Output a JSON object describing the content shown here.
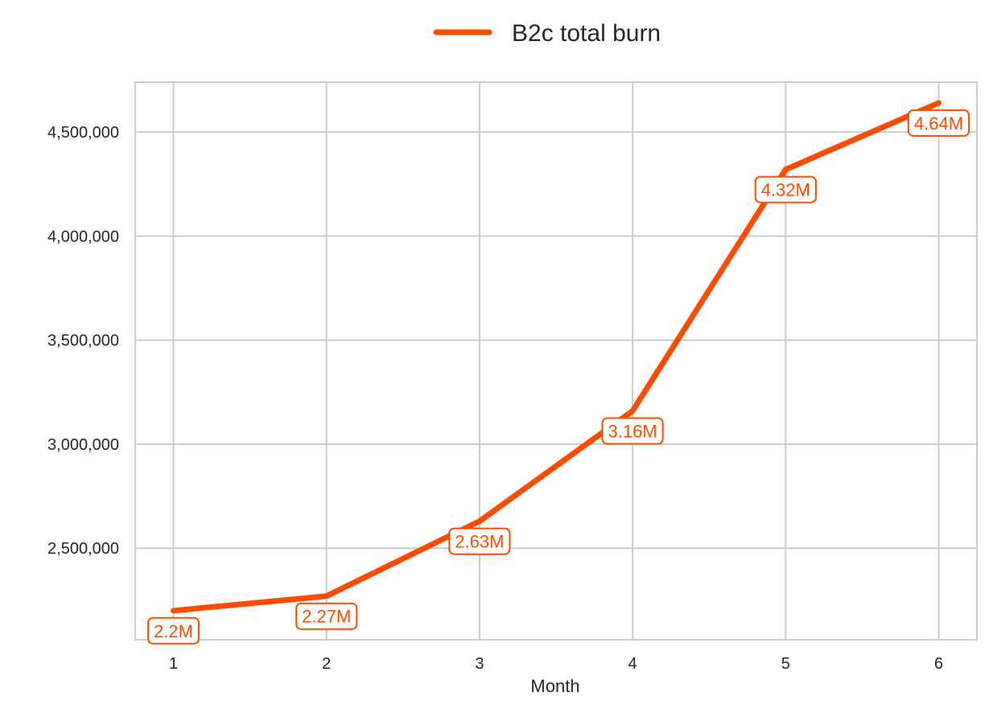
{
  "chart_data": {
    "type": "line",
    "x": [
      1,
      2,
      3,
      4,
      5,
      6
    ],
    "series": [
      {
        "name": "B2c total burn",
        "values": [
          2200000,
          2270000,
          2630000,
          3160000,
          4320000,
          4640000
        ],
        "data_labels": [
          "2.2M",
          "2.27M",
          "2.63M",
          "3.16M",
          "4.32M",
          "4.64M"
        ],
        "color": "#FF4B00"
      }
    ],
    "xlabel": "Month",
    "ylabel": "",
    "x_ticks": [
      "1",
      "2",
      "3",
      "4",
      "5",
      "6"
    ],
    "y_ticks": [
      2500000,
      3000000,
      3500000,
      4000000,
      4500000
    ],
    "y_tick_labels": [
      "2,500,000",
      "3,000,000",
      "3,500,000",
      "4,000,000",
      "4,500,000"
    ],
    "xlim": [
      0.75,
      6.25
    ],
    "ylim": [
      2060000,
      4740000
    ],
    "grid": true,
    "legend_position": "top-center"
  },
  "colors": {
    "grid": "#cccccc",
    "axis": "#cccccc",
    "background": "#ffffff"
  }
}
